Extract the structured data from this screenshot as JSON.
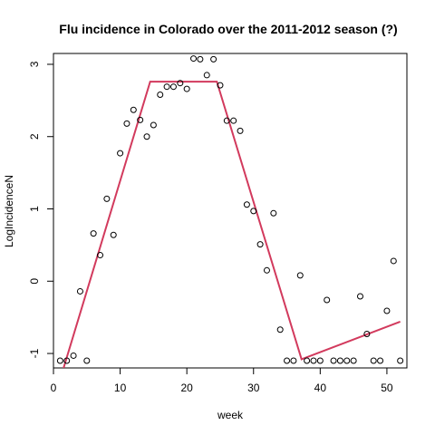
{
  "chart_data": {
    "type": "scatter",
    "title": "Flu incidence in Colorado over the 2011-2012 season (?)",
    "xlabel": "week",
    "ylabel": "LogIncidenceN",
    "xlim": [
      0,
      53
    ],
    "ylim": [
      -1.2,
      3.15
    ],
    "xticks": [
      0,
      10,
      20,
      30,
      40,
      50
    ],
    "yticks": [
      -1,
      0,
      1,
      2,
      3
    ],
    "grid": false,
    "points": {
      "x": [
        1,
        2,
        3,
        4,
        5,
        6,
        7,
        8,
        9,
        10,
        11,
        12,
        13,
        14,
        15,
        16,
        17,
        18,
        19,
        20,
        21,
        22,
        23,
        24,
        25,
        26,
        27,
        28,
        29,
        30,
        31,
        32,
        33,
        34,
        35,
        36,
        37,
        38,
        39,
        40,
        41,
        42,
        43,
        44,
        45,
        46,
        47,
        48,
        49,
        50,
        51,
        52
      ],
      "y": [
        -1.1,
        -1.1,
        -1.03,
        -0.14,
        -1.1,
        0.66,
        0.36,
        1.14,
        0.64,
        1.77,
        2.18,
        2.37,
        2.23,
        2.0,
        2.16,
        2.58,
        2.69,
        2.69,
        2.74,
        2.66,
        3.08,
        3.07,
        2.85,
        3.07,
        2.71,
        2.22,
        2.22,
        2.08,
        1.06,
        0.97,
        0.51,
        0.15,
        0.94,
        -0.67,
        -1.1,
        -1.1,
        0.08,
        -1.1,
        -1.1,
        -1.1,
        -0.26,
        -1.1,
        -1.1,
        -1.1,
        -1.1,
        -0.21,
        -0.73,
        -1.1,
        -1.1,
        -0.41,
        0.28,
        -1.1
      ],
      "marker": "open-circle",
      "color": "#000000"
    },
    "line": {
      "x": [
        0.7,
        14.5,
        24.5,
        37.2,
        52
      ],
      "y": [
        -1.45,
        2.76,
        2.76,
        -1.08,
        -0.56
      ],
      "color": "#d23a5d"
    }
  }
}
